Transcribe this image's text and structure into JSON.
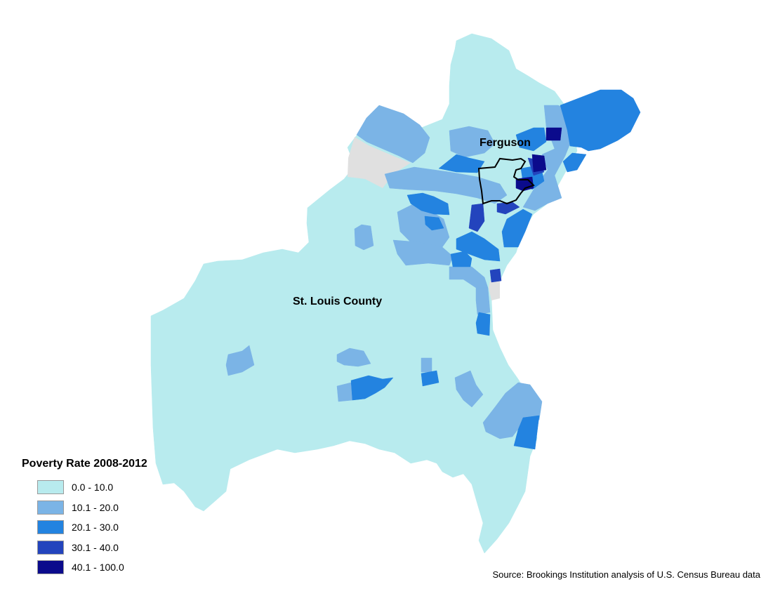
{
  "map": {
    "place_labels": {
      "ferguson": "Ferguson",
      "county": "St. Louis County"
    }
  },
  "legend": {
    "title": "Poverty Rate 2008-2012",
    "classes": [
      {
        "label": "0.0 - 10.0",
        "color": "#b8ebee"
      },
      {
        "label": "10.1 - 20.0",
        "color": "#7bb4e6"
      },
      {
        "label": "20.1 - 30.0",
        "color": "#2383e0"
      },
      {
        "label": "30.1 - 40.0",
        "color": "#2344bd"
      },
      {
        "label": "40.1 - 100.0",
        "color": "#0b0b8c"
      }
    ],
    "no_data_color": "#e0e0e0"
  },
  "source": "Source: Brookings Institution analysis of U.S. Census Bureau data"
}
